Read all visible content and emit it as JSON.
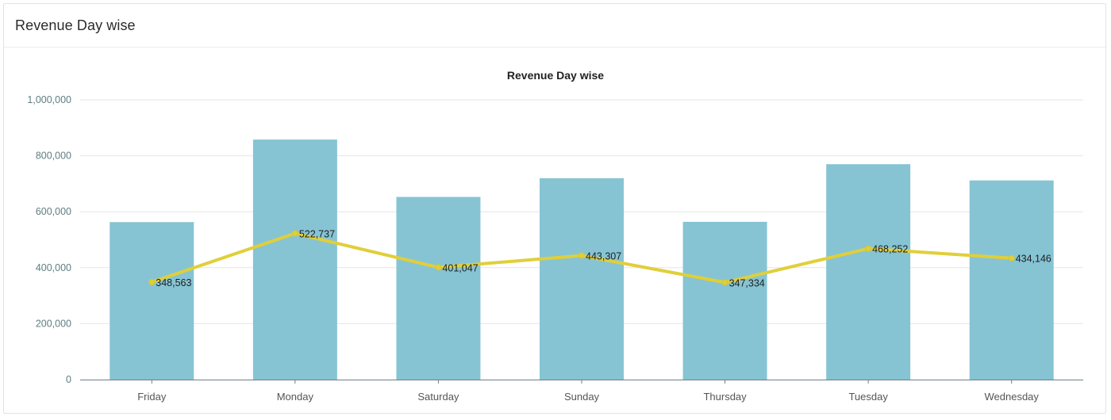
{
  "card": {
    "title": "Revenue Day wise"
  },
  "chart_data": {
    "type": "bar",
    "title": "Revenue Day wise",
    "categories": [
      "Friday",
      "Monday",
      "Saturday",
      "Sunday",
      "Thursday",
      "Tuesday",
      "Wednesday"
    ],
    "series": [
      {
        "type": "bar",
        "values": [
          563000,
          858000,
          653000,
          720000,
          564000,
          770000,
          712000
        ],
        "color": "#86c4d4"
      },
      {
        "type": "line",
        "values": [
          348563,
          522737,
          401047,
          443307,
          347334,
          468252,
          434146
        ],
        "labels": [
          "348,563",
          "522,737",
          "401,047",
          "443,307",
          "347,334",
          "468,252",
          "434,146"
        ],
        "color": "#e0cf3a"
      }
    ],
    "ylim": [
      0,
      1000000
    ],
    "yticks": [
      0,
      200000,
      400000,
      600000,
      800000,
      1000000
    ],
    "ytick_labels": [
      "0",
      "200,000",
      "400,000",
      "600,000",
      "800,000",
      "1,000,000"
    ],
    "xlabel": "",
    "ylabel": "",
    "grid": true,
    "legend": "none"
  }
}
